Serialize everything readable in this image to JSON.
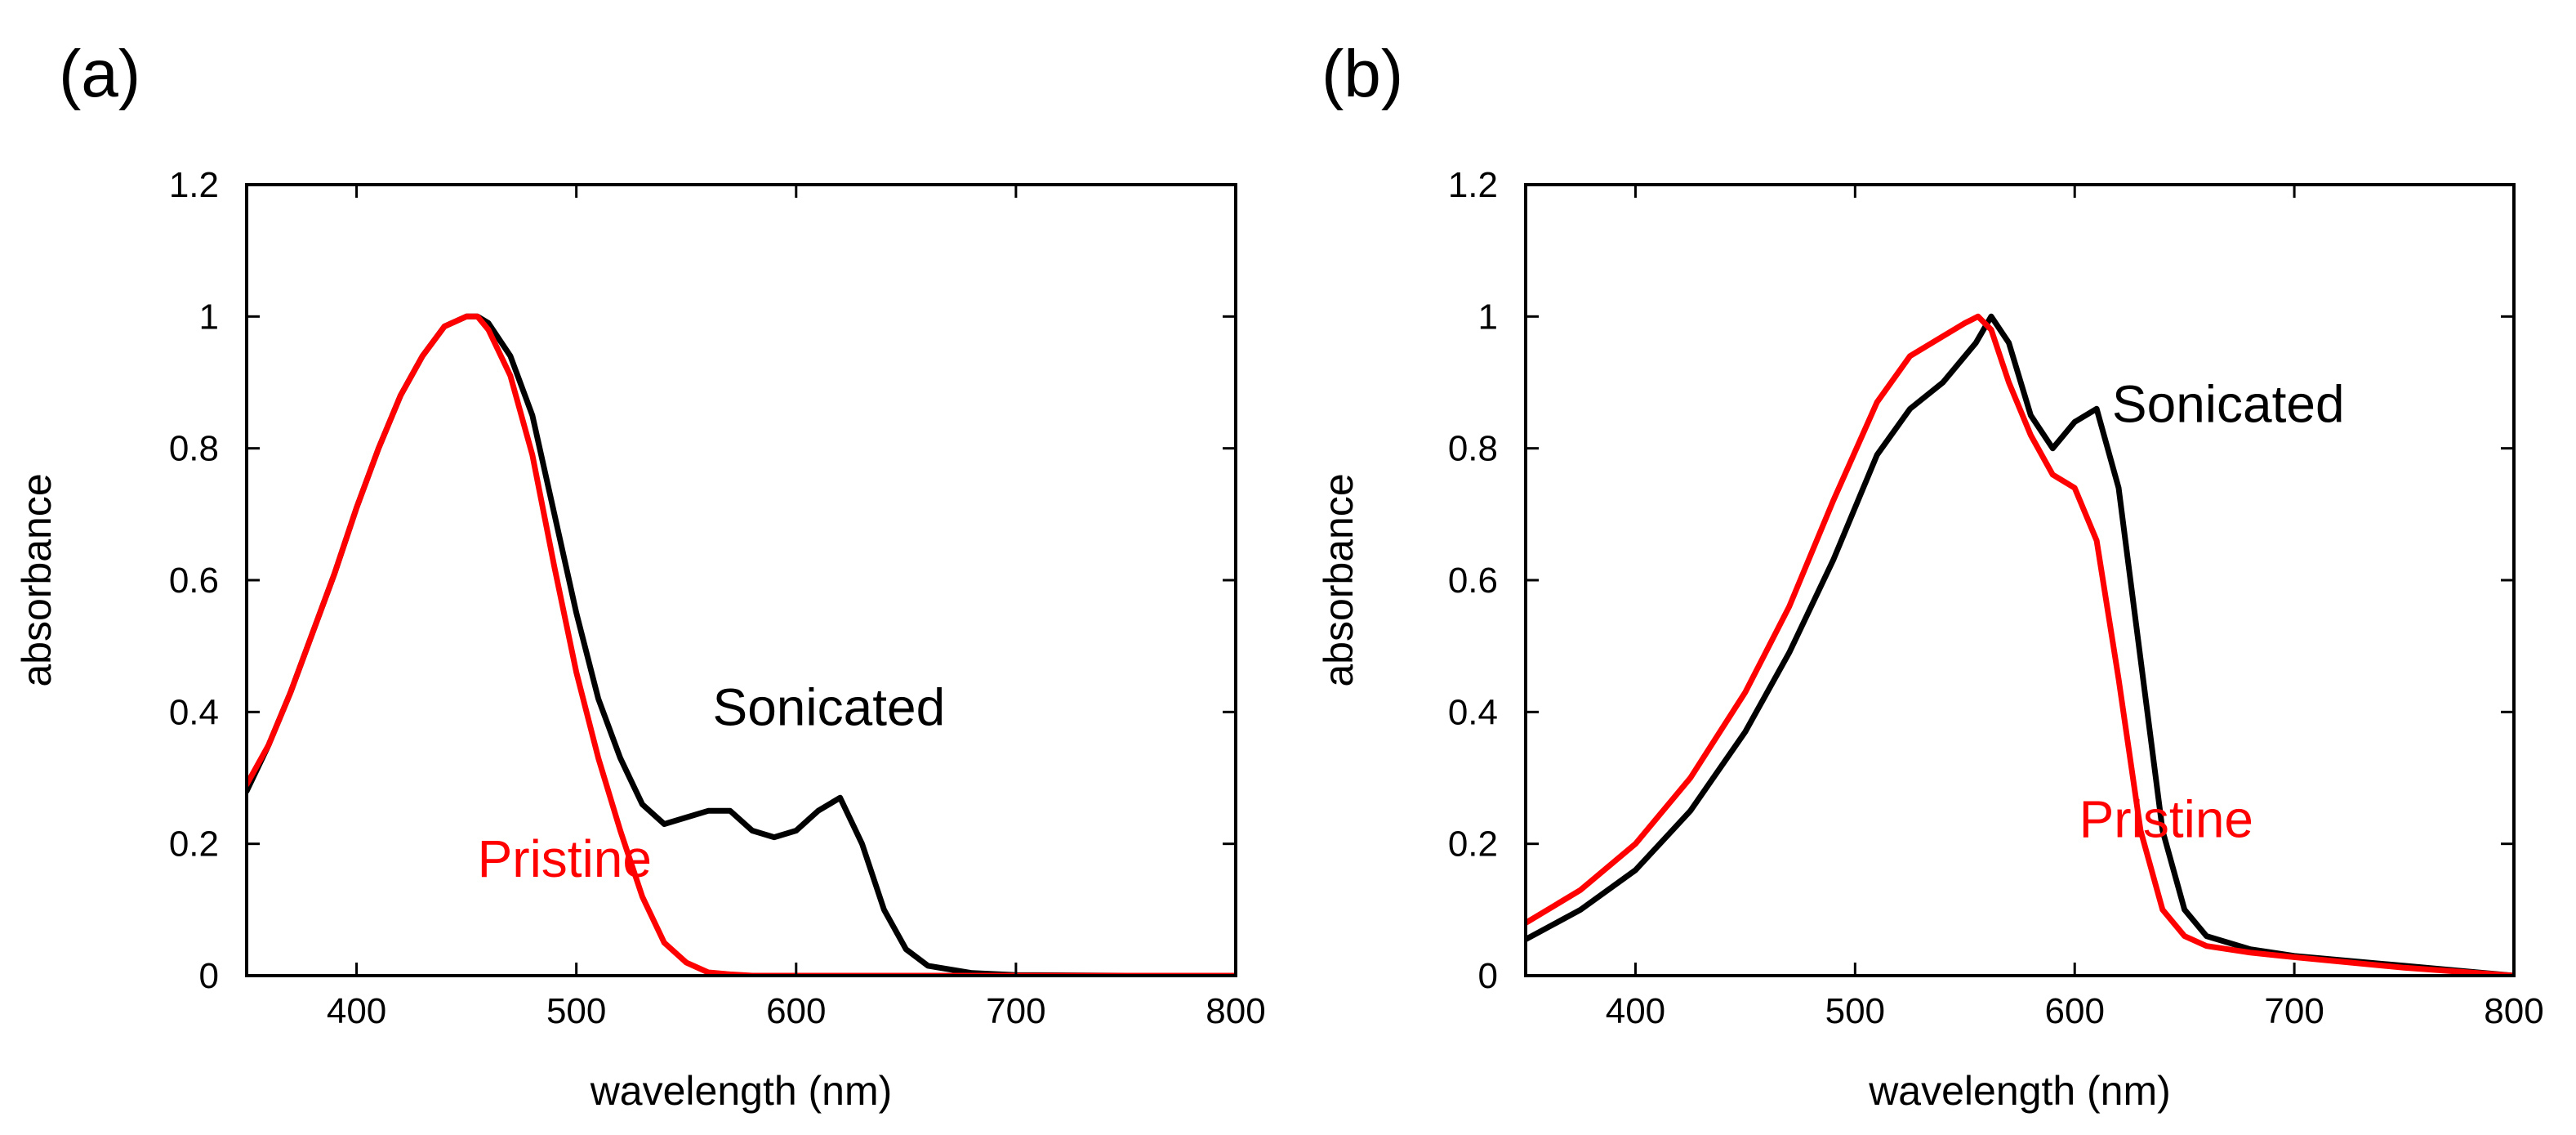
{
  "chart_data": [
    {
      "panel": "(a)",
      "type": "line",
      "xlabel": "wavelength (nm)",
      "ylabel": "absorbance",
      "xlim": [
        350,
        800
      ],
      "ylim": [
        0,
        1.2
      ],
      "xticks": [
        400,
        500,
        600,
        700,
        800
      ],
      "xtick_labels": [
        "400",
        "500",
        "600",
        "700",
        "800"
      ],
      "yticks": [
        0,
        0.2,
        0.4,
        0.6,
        0.8,
        1,
        1.2
      ],
      "ytick_labels": [
        "0",
        "0.2",
        "0.4",
        "0.6",
        "0.8",
        "1",
        "1.2"
      ],
      "grid": false,
      "series": [
        {
          "name": "Sonicated",
          "color": "#000000",
          "x": [
            350,
            360,
            370,
            380,
            390,
            400,
            410,
            420,
            430,
            440,
            450,
            455,
            460,
            470,
            480,
            490,
            500,
            510,
            520,
            530,
            540,
            550,
            560,
            570,
            580,
            590,
            600,
            610,
            620,
            630,
            640,
            650,
            660,
            680,
            700,
            750,
            800
          ],
          "y": [
            0.28,
            0.35,
            0.43,
            0.52,
            0.61,
            0.71,
            0.8,
            0.88,
            0.94,
            0.985,
            1.0,
            1.0,
            0.99,
            0.94,
            0.85,
            0.7,
            0.55,
            0.42,
            0.33,
            0.26,
            0.23,
            0.24,
            0.25,
            0.25,
            0.22,
            0.21,
            0.22,
            0.25,
            0.27,
            0.2,
            0.1,
            0.04,
            0.015,
            0.004,
            0.001,
            0.0,
            0.0
          ]
        },
        {
          "name": "Pristine",
          "color": "#ff0000",
          "x": [
            350,
            360,
            370,
            380,
            390,
            400,
            410,
            420,
            430,
            440,
            450,
            455,
            460,
            470,
            480,
            490,
            500,
            510,
            520,
            530,
            540,
            550,
            560,
            570,
            580,
            600,
            650,
            700,
            800
          ],
          "y": [
            0.29,
            0.35,
            0.43,
            0.52,
            0.61,
            0.71,
            0.8,
            0.88,
            0.94,
            0.985,
            1.0,
            1.0,
            0.98,
            0.91,
            0.79,
            0.62,
            0.46,
            0.33,
            0.22,
            0.12,
            0.05,
            0.02,
            0.005,
            0.002,
            0.0,
            0.0,
            0.0,
            0.0,
            0.0
          ]
        }
      ],
      "annotations": [
        {
          "text": "Sonicated",
          "x": 562,
          "y": 0.38,
          "color": "#000000"
        },
        {
          "text": "Pristine",
          "x": 455,
          "y": 0.15,
          "color": "#ff0000"
        }
      ]
    },
    {
      "panel": "(b)",
      "type": "line",
      "xlabel": "wavelength (nm)",
      "ylabel": "absorbance",
      "xlim": [
        350,
        800
      ],
      "ylim": [
        0,
        1.2
      ],
      "xticks": [
        400,
        500,
        600,
        700,
        800
      ],
      "xtick_labels": [
        "400",
        "500",
        "600",
        "700",
        "800"
      ],
      "yticks": [
        0,
        0.2,
        0.4,
        0.6,
        0.8,
        1,
        1.2
      ],
      "ytick_labels": [
        "0",
        "0.2",
        "0.4",
        "0.6",
        "0.8",
        "1",
        "1.2"
      ],
      "grid": false,
      "series": [
        {
          "name": "Sonicated",
          "color": "#000000",
          "x": [
            350,
            375,
            400,
            425,
            450,
            470,
            490,
            510,
            525,
            540,
            555,
            562,
            570,
            580,
            590,
            600,
            610,
            620,
            630,
            640,
            650,
            660,
            680,
            700,
            750,
            800
          ],
          "y": [
            0.055,
            0.1,
            0.16,
            0.25,
            0.37,
            0.49,
            0.63,
            0.79,
            0.86,
            0.9,
            0.96,
            1.0,
            0.96,
            0.85,
            0.8,
            0.84,
            0.86,
            0.74,
            0.48,
            0.22,
            0.1,
            0.06,
            0.04,
            0.03,
            0.015,
            0.0
          ]
        },
        {
          "name": "Pristine",
          "color": "#ff0000",
          "x": [
            350,
            375,
            400,
            425,
            450,
            470,
            490,
            510,
            525,
            540,
            550,
            556,
            562,
            570,
            580,
            590,
            600,
            610,
            620,
            630,
            640,
            650,
            660,
            680,
            700,
            750,
            800
          ],
          "y": [
            0.08,
            0.13,
            0.2,
            0.3,
            0.43,
            0.56,
            0.72,
            0.87,
            0.94,
            0.97,
            0.99,
            1.0,
            0.98,
            0.9,
            0.82,
            0.76,
            0.74,
            0.66,
            0.45,
            0.22,
            0.1,
            0.06,
            0.045,
            0.035,
            0.028,
            0.012,
            0.0
          ]
        }
      ],
      "annotations": [
        {
          "text": "Sonicated",
          "x": 617,
          "y": 0.84,
          "color": "#000000"
        },
        {
          "text": "Pristine",
          "x": 602,
          "y": 0.21,
          "color": "#ff0000"
        }
      ]
    }
  ]
}
